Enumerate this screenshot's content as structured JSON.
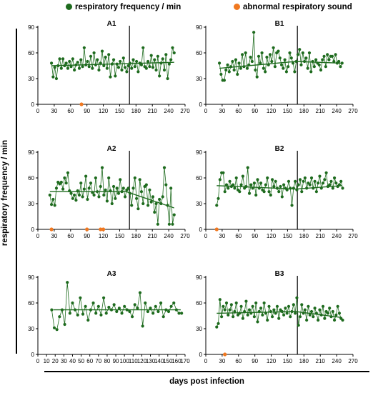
{
  "legend": {
    "freq_label": "respiratory frequency / min",
    "sound_label": "abnormal respiratory sound",
    "freq_color": "#1e6b1e",
    "sound_color": "#f07820"
  },
  "y_axis_title": "respiratory frequency / min",
  "x_axis_title": "days post infection",
  "chart_data": [
    {
      "id": "A1",
      "type": "line",
      "title": "A1",
      "xlim": [
        0,
        270
      ],
      "ylim": [
        0,
        90
      ],
      "xticks": [
        0,
        30,
        60,
        90,
        120,
        150,
        180,
        210,
        240,
        270
      ],
      "yticks": [
        0,
        30,
        60,
        90
      ],
      "vline_x": 168,
      "trend": [
        [
          25,
          45
        ],
        [
          250,
          49
        ]
      ],
      "abnormal_sound_x": [
        80
      ],
      "series": [
        {
          "x": [
            25,
            28,
            31,
            34,
            37,
            40,
            43,
            46,
            49,
            52,
            55,
            58,
            61,
            64,
            67,
            70,
            73,
            76,
            79,
            82,
            85,
            88,
            91,
            94,
            97,
            100,
            103,
            106,
            109,
            112,
            115,
            118,
            121,
            124,
            127,
            130,
            133,
            136,
            139,
            142,
            145,
            148,
            151,
            154,
            157,
            160,
            163,
            166,
            169,
            172,
            175,
            178,
            181,
            184,
            187,
            190,
            193,
            196,
            199,
            202,
            205,
            208,
            211,
            214,
            217,
            220,
            223,
            226,
            229,
            232,
            235,
            238,
            241,
            244,
            247,
            250
          ],
          "y": [
            48,
            32,
            43,
            30,
            45,
            53,
            42,
            53,
            45,
            48,
            42,
            50,
            44,
            53,
            40,
            46,
            49,
            42,
            52,
            44,
            66,
            46,
            50,
            44,
            56,
            42,
            60,
            46,
            52,
            40,
            48,
            62,
            45,
            55,
            42,
            58,
            32,
            47,
            52,
            33,
            47,
            43,
            50,
            40,
            54,
            43,
            38,
            45,
            48,
            42,
            52,
            44,
            50,
            38,
            48,
            46,
            66,
            44,
            42,
            50,
            44,
            57,
            43,
            52,
            40,
            56,
            33,
            48,
            53,
            40,
            58,
            30,
            47,
            52,
            66,
            60
          ]
        }
      ]
    },
    {
      "id": "A2",
      "type": "line",
      "title": "A2",
      "xlim": [
        0,
        270
      ],
      "ylim": [
        0,
        90
      ],
      "xticks": [
        0,
        30,
        60,
        90,
        120,
        150,
        180,
        210,
        240,
        270
      ],
      "yticks": [
        0,
        30,
        60,
        90
      ],
      "vline_x": 168,
      "trend": [
        [
          22,
          44
        ],
        [
          162,
          44
        ],
        [
          250,
          25
        ]
      ],
      "abnormal_sound_x": [
        25,
        90,
        115,
        120
      ],
      "series": [
        {
          "x": [
            22,
            25,
            28,
            31,
            34,
            37,
            40,
            43,
            46,
            49,
            52,
            55,
            58,
            61,
            64,
            67,
            70,
            73,
            76,
            79,
            82,
            85,
            88,
            91,
            94,
            97,
            100,
            103,
            106,
            109,
            112,
            115,
            118,
            121,
            124,
            127,
            130,
            133,
            136,
            139,
            142,
            145,
            148,
            151,
            154,
            157,
            160,
            163,
            166,
            169,
            172,
            175,
            178,
            181,
            184,
            187,
            190,
            193,
            196,
            199,
            202,
            205,
            208,
            211,
            214,
            217,
            220,
            223,
            226,
            229,
            232,
            235,
            238,
            241,
            244,
            247,
            250
          ],
          "y": [
            40,
            29,
            35,
            28,
            48,
            55,
            53,
            55,
            47,
            60,
            54,
            66,
            45,
            42,
            36,
            40,
            34,
            45,
            40,
            54,
            38,
            47,
            62,
            35,
            48,
            54,
            43,
            40,
            60,
            44,
            38,
            50,
            72,
            40,
            46,
            33,
            60,
            45,
            30,
            50,
            36,
            48,
            42,
            58,
            44,
            48,
            38,
            46,
            48,
            42,
            28,
            48,
            60,
            36,
            24,
            58,
            44,
            30,
            50,
            52,
            28,
            46,
            32,
            38,
            20,
            30,
            6,
            35,
            30,
            38,
            72,
            52,
            28,
            6,
            48,
            6,
            17
          ]
        }
      ]
    },
    {
      "id": "A3",
      "type": "line",
      "title": "A3",
      "xlim": [
        0,
        170
      ],
      "ylim": [
        0,
        90
      ],
      "xticks": [
        0,
        10,
        20,
        30,
        40,
        50,
        60,
        70,
        80,
        90,
        100,
        110,
        120,
        130,
        140,
        150,
        160,
        170
      ],
      "yticks": [
        0,
        30,
        60,
        90
      ],
      "trend": [
        [
          18,
          52
        ],
        [
          165,
          52
        ]
      ],
      "abnormal_sound_x": [],
      "series": [
        {
          "x": [
            16,
            19,
            22,
            25,
            28,
            31,
            34,
            37,
            40,
            43,
            46,
            49,
            52,
            55,
            58,
            61,
            64,
            67,
            70,
            73,
            76,
            79,
            82,
            85,
            88,
            91,
            94,
            97,
            100,
            103,
            106,
            109,
            112,
            115,
            118,
            121,
            124,
            127,
            130,
            133,
            136,
            139,
            142,
            145,
            148,
            151,
            154,
            157,
            160,
            163,
            166
          ],
          "y": [
            52,
            31,
            29,
            44,
            52,
            35,
            84,
            48,
            60,
            52,
            46,
            66,
            47,
            56,
            40,
            52,
            60,
            48,
            56,
            46,
            66,
            48,
            55,
            52,
            58,
            50,
            54,
            48,
            56,
            52,
            50,
            44,
            58,
            54,
            72,
            33,
            60,
            50,
            54,
            48,
            56,
            50,
            60,
            44,
            52,
            50,
            56,
            60,
            52,
            48,
            48
          ]
        }
      ]
    },
    {
      "id": "B1",
      "type": "line",
      "title": "B1",
      "xlim": [
        0,
        270
      ],
      "ylim": [
        0,
        90
      ],
      "xticks": [
        0,
        30,
        60,
        90,
        120,
        150,
        180,
        210,
        240,
        270
      ],
      "yticks": [
        0,
        30,
        60,
        90
      ],
      "vline_x": 168,
      "trend": [
        [
          25,
          42
        ],
        [
          165,
          50
        ],
        [
          250,
          48
        ]
      ],
      "abnormal_sound_x": [],
      "series": [
        {
          "x": [
            25,
            28,
            31,
            34,
            37,
            40,
            43,
            46,
            49,
            52,
            55,
            58,
            61,
            64,
            67,
            70,
            73,
            76,
            79,
            82,
            85,
            88,
            91,
            94,
            97,
            100,
            103,
            106,
            109,
            112,
            115,
            118,
            121,
            124,
            127,
            130,
            133,
            136,
            139,
            142,
            145,
            148,
            151,
            154,
            157,
            160,
            163,
            166,
            169,
            172,
            175,
            178,
            181,
            184,
            187,
            190,
            193,
            196,
            199,
            202,
            205,
            208,
            211,
            214,
            217,
            220,
            223,
            226,
            229,
            232,
            235,
            238,
            241,
            244,
            247,
            250
          ],
          "y": [
            48,
            35,
            28,
            28,
            40,
            46,
            38,
            44,
            50,
            40,
            52,
            35,
            48,
            42,
            58,
            44,
            60,
            42,
            46,
            55,
            50,
            84,
            40,
            32,
            56,
            48,
            60,
            42,
            38,
            55,
            46,
            58,
            50,
            66,
            44,
            60,
            62,
            54,
            46,
            42,
            52,
            38,
            44,
            60,
            54,
            48,
            38,
            50,
            58,
            64,
            46,
            60,
            50,
            54,
            42,
            60,
            38,
            50,
            44,
            52,
            48,
            46,
            40,
            52,
            56,
            44,
            58,
            52,
            56,
            56,
            50,
            58,
            48,
            50,
            44,
            48
          ]
        }
      ]
    },
    {
      "id": "B2",
      "type": "line",
      "title": "B2",
      "xlim": [
        0,
        270
      ],
      "ylim": [
        0,
        90
      ],
      "xticks": [
        0,
        30,
        60,
        90,
        120,
        150,
        180,
        210,
        240,
        270
      ],
      "yticks": [
        0,
        30,
        60,
        90
      ],
      "vline_x": 168,
      "trend": [
        [
          20,
          51
        ],
        [
          165,
          47
        ],
        [
          250,
          51
        ]
      ],
      "abnormal_sound_x": [
        20
      ],
      "series": [
        {
          "x": [
            20,
            23,
            26,
            29,
            32,
            35,
            38,
            41,
            44,
            47,
            50,
            53,
            56,
            59,
            62,
            65,
            68,
            71,
            74,
            77,
            80,
            83,
            86,
            89,
            92,
            95,
            98,
            101,
            104,
            107,
            110,
            113,
            116,
            119,
            122,
            125,
            128,
            131,
            134,
            137,
            140,
            143,
            146,
            149,
            152,
            155,
            158,
            161,
            164,
            167,
            170,
            173,
            176,
            179,
            182,
            185,
            188,
            191,
            194,
            197,
            200,
            203,
            206,
            209,
            212,
            215,
            218,
            221,
            224,
            227,
            230,
            233,
            236,
            239,
            242,
            245,
            248,
            251
          ],
          "y": [
            28,
            36,
            58,
            66,
            66,
            44,
            52,
            48,
            56,
            50,
            52,
            48,
            60,
            46,
            44,
            52,
            62,
            48,
            50,
            72,
            42,
            52,
            48,
            54,
            40,
            58,
            48,
            54,
            46,
            44,
            52,
            60,
            44,
            40,
            58,
            50,
            56,
            48,
            44,
            50,
            38,
            52,
            48,
            46,
            56,
            48,
            28,
            48,
            56,
            46,
            52,
            58,
            44,
            56,
            60,
            48,
            54,
            52,
            60,
            48,
            56,
            44,
            54,
            62,
            48,
            54,
            58,
            66,
            50,
            52,
            56,
            48,
            60,
            54,
            50,
            52,
            56,
            48
          ]
        }
      ]
    },
    {
      "id": "B3",
      "type": "line",
      "title": "B3",
      "xlim": [
        0,
        270
      ],
      "ylim": [
        0,
        90
      ],
      "xticks": [
        0,
        30,
        60,
        90,
        120,
        150,
        180,
        210,
        240,
        270
      ],
      "yticks": [
        0,
        30,
        60,
        90
      ],
      "vline_x": 168,
      "trend": [
        [
          20,
          48
        ],
        [
          165,
          50
        ],
        [
          250,
          43
        ]
      ],
      "abnormal_sound_x": [
        35
      ],
      "series": [
        {
          "x": [
            20,
            23,
            26,
            29,
            32,
            35,
            38,
            41,
            44,
            47,
            50,
            53,
            56,
            59,
            62,
            65,
            68,
            71,
            74,
            77,
            80,
            83,
            86,
            89,
            92,
            95,
            98,
            101,
            104,
            107,
            110,
            113,
            116,
            119,
            122,
            125,
            128,
            131,
            134,
            137,
            140,
            143,
            146,
            149,
            152,
            155,
            158,
            161,
            164,
            167,
            170,
            173,
            176,
            179,
            182,
            185,
            188,
            191,
            194,
            197,
            200,
            203,
            206,
            209,
            212,
            215,
            218,
            221,
            224,
            227,
            230,
            233,
            236,
            239,
            242,
            245,
            248,
            251
          ],
          "y": [
            32,
            36,
            64,
            44,
            56,
            52,
            60,
            46,
            52,
            58,
            44,
            50,
            60,
            46,
            48,
            56,
            42,
            50,
            62,
            46,
            52,
            48,
            56,
            44,
            60,
            38,
            50,
            54,
            46,
            60,
            48,
            40,
            56,
            50,
            44,
            52,
            48,
            56,
            42,
            52,
            50,
            46,
            54,
            48,
            56,
            44,
            50,
            58,
            48,
            66,
            34,
            44,
            58,
            48,
            52,
            40,
            56,
            46,
            50,
            44,
            54,
            48,
            40,
            52,
            46,
            56,
            42,
            50,
            48,
            54,
            44,
            50,
            40,
            46,
            56,
            48,
            42,
            40
          ]
        }
      ]
    }
  ]
}
